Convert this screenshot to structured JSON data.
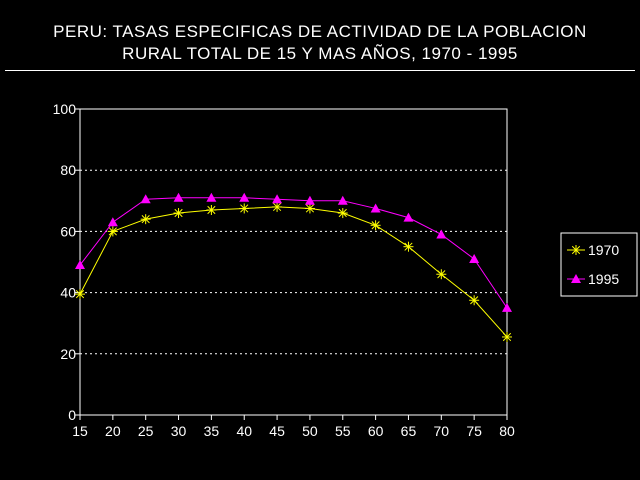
{
  "chart_data": {
    "type": "line",
    "title": [
      "PERU: TASAS ESPECIFICAS DE ACTIVIDAD DE LA POBLACION",
      "RURAL TOTAL DE 15 Y MAS AÑOS, 1970 - 1995"
    ],
    "xlabel": "",
    "ylabel": "",
    "x": [
      15,
      20,
      25,
      30,
      35,
      40,
      45,
      50,
      55,
      60,
      65,
      70,
      75,
      80
    ],
    "x_ticks": [
      "15",
      "20",
      "25",
      "30",
      "35",
      "40",
      "45",
      "50",
      "55",
      "60",
      "65",
      "70",
      "75",
      "80"
    ],
    "y_ticks": [
      "0",
      "20",
      "40",
      "60",
      "80",
      "100"
    ],
    "ylim": [
      0,
      100
    ],
    "grid": "horizontal dotted",
    "legend_position": "right",
    "series": [
      {
        "name": "1970",
        "marker": "asterisk",
        "color": "#ffff00",
        "values": [
          39.5,
          60,
          64,
          66,
          67,
          67.5,
          68,
          67.5,
          66,
          62,
          55,
          46,
          37.5,
          25.5
        ]
      },
      {
        "name": "1995",
        "marker": "triangle",
        "color": "#ff00ff",
        "values": [
          49,
          63,
          70.5,
          71,
          71,
          71,
          70.5,
          70,
          70,
          67.5,
          64.5,
          59,
          51,
          35
        ]
      }
    ]
  }
}
